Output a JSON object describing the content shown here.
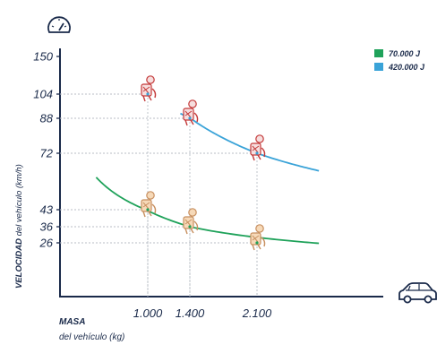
{
  "chart_data": {
    "type": "line",
    "ylabel_bold": "VELOCIDAD",
    "ylabel_rest": " del vehículo (km/h)",
    "xlabel_bold": "MASA",
    "xlabel_rest": "del vehículo (kg)",
    "x_ticks": [
      {
        "value": 1000,
        "label": "1.000"
      },
      {
        "value": 1400,
        "label": "1.400"
      },
      {
        "value": 2100,
        "label": "2.100"
      }
    ],
    "y_ticks": [
      {
        "value": 150,
        "label": "150"
      },
      {
        "value": 104,
        "label": "104"
      },
      {
        "value": 88,
        "label": "88"
      },
      {
        "value": 72,
        "label": "72"
      },
      {
        "value": 43,
        "label": "43"
      },
      {
        "value": 36,
        "label": "36"
      },
      {
        "value": 26,
        "label": "26"
      }
    ],
    "series": [
      {
        "name": "70.000 J",
        "color": "#1fa25a",
        "points": [
          {
            "x": 1000,
            "y": 43
          },
          {
            "x": 1400,
            "y": 36
          },
          {
            "x": 2100,
            "y": 26
          }
        ]
      },
      {
        "name": "420.000 J",
        "color": "#3aa3d8",
        "points": [
          {
            "x": 1000,
            "y": 104
          },
          {
            "x": 1400,
            "y": 88
          },
          {
            "x": 2100,
            "y": 72
          }
        ]
      }
    ],
    "grid": "dashed guides at data points",
    "legend": "top-right",
    "icons": [
      "speedometer-icon",
      "car-icon",
      "crash-test-dummy-icon"
    ]
  }
}
